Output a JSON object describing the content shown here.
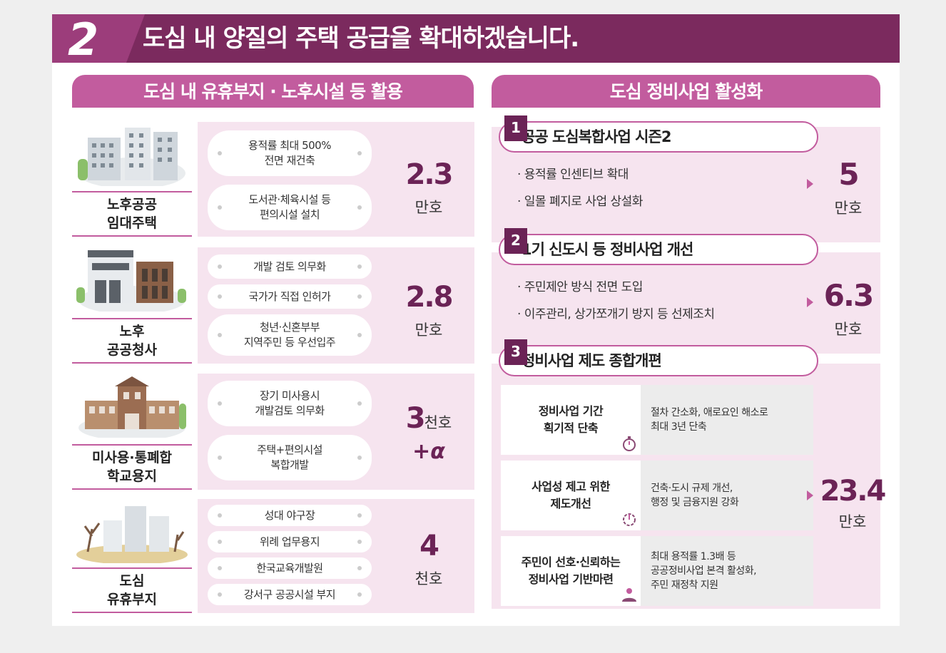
{
  "header": {
    "number": "2",
    "title": "도심 내 양질의 주택 공급을 확대하겠습니다."
  },
  "left": {
    "section_title": "도심 내 유휴부지 · 노후시설 등 활용",
    "rows": [
      {
        "caption": [
          "노후공공",
          "임대주택"
        ],
        "items": [
          [
            "용적률 최대 500%",
            "전면 재건축"
          ],
          [
            "도서관·체육시설 등",
            "편의시설 설치"
          ]
        ],
        "value": "2.3",
        "unit": "만호"
      },
      {
        "caption": [
          "노후",
          "공공청사"
        ],
        "items": [
          [
            "개발 검토 의무화"
          ],
          [
            "국가가 직접 인허가"
          ],
          [
            "청년·신혼부부",
            "지역주민 등 우선입주"
          ]
        ],
        "value": "2.8",
        "unit": "만호"
      },
      {
        "caption": [
          "미사용·통폐합",
          "학교용지"
        ],
        "items": [
          [
            "장기 미사용시",
            "개발검토 의무화"
          ],
          [
            "주택+편의시설",
            "복합개발"
          ]
        ],
        "value": "3",
        "unit": "천호",
        "extra": "+α"
      },
      {
        "caption": [
          "도심",
          "유휴부지"
        ],
        "items": [
          [
            "성대 야구장"
          ],
          [
            "위례 업무용지"
          ],
          [
            "한국교육개발원"
          ],
          [
            "강서구 공공시설 부지"
          ]
        ],
        "value": "4",
        "unit": "천호"
      }
    ]
  },
  "right": {
    "section_title": "도심 정비사업 활성화",
    "blocks": [
      {
        "badge": "1",
        "title": "공공 도심복합사업  시즌2",
        "bullets": [
          "· 용적률 인센티브 확대",
          "· 일몰 폐지로 사업 상설화"
        ],
        "value": "5",
        "unit": "만호"
      },
      {
        "badge": "2",
        "title": "1기 신도시 등 정비사업  개선",
        "bullets": [
          "· 주민제안 방식 전면 도입",
          "· 이주관리, 상가쪼개기 방지 등 선제조치"
        ],
        "value": "6.3",
        "unit": "만호"
      },
      {
        "badge": "3",
        "title": "정비사업  제도  종합개편",
        "value": "23.4",
        "unit": "만호",
        "cards": [
          {
            "left": [
              "정비사업 기간",
              "획기적 단축"
            ],
            "right": [
              "절차 간소화, 애로요인 해소로",
              "최대 3년 단축"
            ],
            "icon": "stopwatch-icon"
          },
          {
            "left": [
              "사업성 제고 위한",
              "제도개선"
            ],
            "right": [
              "건축·도시 규제 개선,",
              "행정 및 금융지원 강화"
            ],
            "icon": "power-gear-icon"
          },
          {
            "left": [
              "주민이 선호·신뢰하는",
              "정비사업 기반마련"
            ],
            "right": [
              "최대 용적률 1.3배 등",
              "공공정비사업 본격 활성화,",
              "주민 재정착 지원"
            ],
            "icon": "people-gear-icon"
          }
        ]
      }
    ]
  },
  "colors": {
    "header": "#7b2a5e",
    "accent": "#c25c9e",
    "number": "#6b2356",
    "pink_bg": "#f6e4ef"
  }
}
